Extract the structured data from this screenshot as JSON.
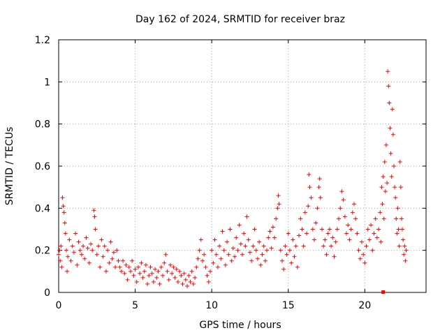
{
  "chart_data": {
    "type": "scatter",
    "title": "Day 162 of 2024, SRMTID for receiver braz",
    "xlabel": "GPS time / hours",
    "ylabel": "SRMTID / TECUs",
    "xlim": [
      0,
      24
    ],
    "ylim": [
      0,
      1.2
    ],
    "x_ticks": [
      0,
      5,
      10,
      15,
      20
    ],
    "x_tick_labels": [
      "0",
      "5",
      "10",
      "15",
      "20"
    ],
    "y_ticks": [
      0,
      0.2,
      0.4,
      0.6,
      0.8,
      1.0,
      1.2
    ],
    "y_tick_labels": [
      "0",
      "0.2",
      "0.4",
      "0.6",
      "0.8",
      "1",
      "1.2"
    ],
    "grid": true,
    "marker": "plus",
    "color": "#ff0000",
    "series": [
      {
        "name": "SRMTID",
        "points": [
          [
            0.0,
            0.18
          ],
          [
            0.05,
            0.2
          ],
          [
            0.1,
            0.15
          ],
          [
            0.15,
            0.22
          ],
          [
            0.2,
            0.12
          ],
          [
            0.25,
            0.45
          ],
          [
            0.3,
            0.41
          ],
          [
            0.35,
            0.38
          ],
          [
            0.4,
            0.33
          ],
          [
            0.45,
            0.28
          ],
          [
            0.5,
            0.2
          ],
          [
            0.55,
            0.1
          ],
          [
            0.6,
            0.17
          ],
          [
            0.7,
            0.25
          ],
          [
            0.8,
            0.15
          ],
          [
            0.9,
            0.22
          ],
          [
            1.0,
            0.19
          ],
          [
            1.1,
            0.28
          ],
          [
            1.2,
            0.13
          ],
          [
            1.3,
            0.24
          ],
          [
            1.4,
            0.2
          ],
          [
            1.5,
            0.18
          ],
          [
            1.6,
            0.22
          ],
          [
            1.7,
            0.16
          ],
          [
            1.8,
            0.26
          ],
          [
            1.9,
            0.21
          ],
          [
            2.0,
            0.14
          ],
          [
            2.1,
            0.23
          ],
          [
            2.2,
            0.2
          ],
          [
            2.3,
            0.39
          ],
          [
            2.35,
            0.36
          ],
          [
            2.4,
            0.3
          ],
          [
            2.5,
            0.18
          ],
          [
            2.6,
            0.22
          ],
          [
            2.7,
            0.12
          ],
          [
            2.8,
            0.25
          ],
          [
            2.9,
            0.17
          ],
          [
            3.0,
            0.22
          ],
          [
            3.1,
            0.1
          ],
          [
            3.2,
            0.2
          ],
          [
            3.3,
            0.14
          ],
          [
            3.4,
            0.24
          ],
          [
            3.5,
            0.16
          ],
          [
            3.6,
            0.19
          ],
          [
            3.7,
            0.12
          ],
          [
            3.8,
            0.2
          ],
          [
            3.9,
            0.15
          ],
          [
            4.0,
            0.12
          ],
          [
            4.1,
            0.1
          ],
          [
            4.2,
            0.15
          ],
          [
            4.3,
            0.09
          ],
          [
            4.4,
            0.13
          ],
          [
            4.5,
            0.06
          ],
          [
            4.6,
            0.12
          ],
          [
            4.7,
            0.1
          ],
          [
            4.8,
            0.15
          ],
          [
            4.9,
            0.08
          ],
          [
            5.0,
            0.11
          ],
          [
            5.1,
            0.05
          ],
          [
            5.2,
            0.12
          ],
          [
            5.3,
            0.09
          ],
          [
            5.4,
            0.14
          ],
          [
            5.5,
            0.07
          ],
          [
            5.6,
            0.1
          ],
          [
            5.7,
            0.13
          ],
          [
            5.8,
            0.04
          ],
          [
            5.9,
            0.08
          ],
          [
            6.0,
            0.12
          ],
          [
            6.1,
            0.09
          ],
          [
            6.2,
            0.05
          ],
          [
            6.3,
            0.11
          ],
          [
            6.4,
            0.07
          ],
          [
            6.5,
            0.1
          ],
          [
            6.6,
            0.04
          ],
          [
            6.7,
            0.12
          ],
          [
            6.8,
            0.08
          ],
          [
            6.9,
            0.14
          ],
          [
            7.0,
            0.18
          ],
          [
            7.1,
            0.1
          ],
          [
            7.2,
            0.06
          ],
          [
            7.3,
            0.13
          ],
          [
            7.4,
            0.09
          ],
          [
            7.5,
            0.12
          ],
          [
            7.6,
            0.07
          ],
          [
            7.7,
            0.11
          ],
          [
            7.8,
            0.05
          ],
          [
            7.9,
            0.1
          ],
          [
            8.0,
            0.08
          ],
          [
            8.1,
            0.04
          ],
          [
            8.2,
            0.09
          ],
          [
            8.3,
            0.06
          ],
          [
            8.4,
            0.03
          ],
          [
            8.5,
            0.08
          ],
          [
            8.6,
            0.05
          ],
          [
            8.7,
            0.1
          ],
          [
            8.8,
            0.04
          ],
          [
            8.9,
            0.07
          ],
          [
            9.0,
            0.12
          ],
          [
            9.1,
            0.16
          ],
          [
            9.2,
            0.2
          ],
          [
            9.3,
            0.25
          ],
          [
            9.4,
            0.15
          ],
          [
            9.5,
            0.18
          ],
          [
            9.6,
            0.12
          ],
          [
            9.7,
            0.08
          ],
          [
            9.8,
            0.05
          ],
          [
            9.9,
            0.1
          ],
          [
            10.0,
            0.2
          ],
          [
            10.1,
            0.14
          ],
          [
            10.2,
            0.25
          ],
          [
            10.3,
            0.18
          ],
          [
            10.4,
            0.12
          ],
          [
            10.5,
            0.22
          ],
          [
            10.6,
            0.16
          ],
          [
            10.7,
            0.29
          ],
          [
            10.8,
            0.2
          ],
          [
            10.9,
            0.13
          ],
          [
            11.0,
            0.24
          ],
          [
            11.1,
            0.18
          ],
          [
            11.2,
            0.3
          ],
          [
            11.3,
            0.15
          ],
          [
            11.4,
            0.21
          ],
          [
            11.5,
            0.17
          ],
          [
            11.6,
            0.26
          ],
          [
            11.7,
            0.2
          ],
          [
            11.8,
            0.32
          ],
          [
            11.9,
            0.23
          ],
          [
            12.0,
            0.18
          ],
          [
            12.1,
            0.28
          ],
          [
            12.2,
            0.22
          ],
          [
            12.3,
            0.36
          ],
          [
            12.4,
            0.25
          ],
          [
            12.5,
            0.19
          ],
          [
            12.6,
            0.15
          ],
          [
            12.7,
            0.22
          ],
          [
            12.8,
            0.3
          ],
          [
            12.9,
            0.2
          ],
          [
            13.0,
            0.16
          ],
          [
            13.1,
            0.24
          ],
          [
            13.2,
            0.13
          ],
          [
            13.3,
            0.18
          ],
          [
            13.4,
            0.22
          ],
          [
            13.5,
            0.15
          ],
          [
            13.6,
            0.2
          ],
          [
            13.7,
            0.26
          ],
          [
            13.8,
            0.29
          ],
          [
            13.9,
            0.21
          ],
          [
            14.0,
            0.31
          ],
          [
            14.1,
            0.26
          ],
          [
            14.2,
            0.35
          ],
          [
            14.3,
            0.4
          ],
          [
            14.35,
            0.46
          ],
          [
            14.4,
            0.42
          ],
          [
            14.5,
            0.2
          ],
          [
            14.6,
            0.15
          ],
          [
            14.7,
            0.11
          ],
          [
            14.8,
            0.22
          ],
          [
            14.9,
            0.18
          ],
          [
            15.0,
            0.28
          ],
          [
            15.1,
            0.2
          ],
          [
            15.2,
            0.14
          ],
          [
            15.3,
            0.25
          ],
          [
            15.4,
            0.17
          ],
          [
            15.5,
            0.22
          ],
          [
            15.6,
            0.12
          ],
          [
            15.7,
            0.27
          ],
          [
            15.8,
            0.35
          ],
          [
            15.9,
            0.3
          ],
          [
            16.0,
            0.22
          ],
          [
            16.1,
            0.38
          ],
          [
            16.2,
            0.28
          ],
          [
            16.3,
            0.41
          ],
          [
            16.35,
            0.56
          ],
          [
            16.4,
            0.5
          ],
          [
            16.5,
            0.45
          ],
          [
            16.6,
            0.3
          ],
          [
            16.7,
            0.25
          ],
          [
            16.8,
            0.33
          ],
          [
            16.9,
            0.4
          ],
          [
            17.0,
            0.5
          ],
          [
            17.05,
            0.54
          ],
          [
            17.1,
            0.45
          ],
          [
            17.2,
            0.3
          ],
          [
            17.3,
            0.22
          ],
          [
            17.4,
            0.25
          ],
          [
            17.5,
            0.18
          ],
          [
            17.6,
            0.28
          ],
          [
            17.7,
            0.3
          ],
          [
            17.8,
            0.22
          ],
          [
            17.9,
            0.26
          ],
          [
            18.0,
            0.17
          ],
          [
            18.1,
            0.24
          ],
          [
            18.2,
            0.3
          ],
          [
            18.3,
            0.35
          ],
          [
            18.4,
            0.4
          ],
          [
            18.5,
            0.48
          ],
          [
            18.6,
            0.44
          ],
          [
            18.7,
            0.36
          ],
          [
            18.8,
            0.28
          ],
          [
            18.9,
            0.32
          ],
          [
            19.0,
            0.25
          ],
          [
            19.1,
            0.3
          ],
          [
            19.2,
            0.38
          ],
          [
            19.3,
            0.42
          ],
          [
            19.4,
            0.35
          ],
          [
            19.5,
            0.28
          ],
          [
            19.6,
            0.2
          ],
          [
            19.7,
            0.16
          ],
          [
            19.8,
            0.24
          ],
          [
            19.9,
            0.18
          ],
          [
            20.0,
            0.14
          ],
          [
            20.1,
            0.22
          ],
          [
            20.2,
            0.3
          ],
          [
            20.3,
            0.25
          ],
          [
            20.4,
            0.32
          ],
          [
            20.5,
            0.2
          ],
          [
            20.6,
            0.28
          ],
          [
            20.7,
            0.35
          ],
          [
            20.8,
            0.26
          ],
          [
            20.9,
            0.3
          ],
          [
            21.0,
            0.38
          ],
          [
            21.05,
            0.24
          ],
          [
            21.1,
            0.5
          ],
          [
            21.15,
            0.42
          ],
          [
            21.2,
            0.55
          ],
          [
            21.25,
            0.35
          ],
          [
            21.3,
            0.62
          ],
          [
            21.35,
            0.48
          ],
          [
            21.4,
            0.7
          ],
          [
            21.45,
            0.52
          ],
          [
            21.5,
            1.05
          ],
          [
            21.55,
            0.98
          ],
          [
            21.6,
            0.9
          ],
          [
            21.65,
            0.78
          ],
          [
            21.7,
            0.66
          ],
          [
            21.75,
            0.55
          ],
          [
            21.8,
            0.87
          ],
          [
            21.85,
            0.75
          ],
          [
            21.9,
            0.6
          ],
          [
            21.95,
            0.5
          ],
          [
            22.0,
            0.45
          ],
          [
            22.05,
            0.35
          ],
          [
            22.1,
            0.28
          ],
          [
            22.15,
            0.4
          ],
          [
            22.2,
            0.3
          ],
          [
            22.25,
            0.22
          ],
          [
            22.3,
            0.62
          ],
          [
            22.35,
            0.5
          ],
          [
            22.4,
            0.35
          ],
          [
            22.45,
            0.3
          ],
          [
            22.5,
            0.25
          ],
          [
            22.55,
            0.18
          ],
          [
            22.6,
            0.22
          ],
          [
            22.65,
            0.15
          ],
          [
            22.7,
            0.2
          ]
        ]
      }
    ],
    "annotations": [
      {
        "type": "square",
        "x": 21.2,
        "y": 0.0
      }
    ]
  }
}
